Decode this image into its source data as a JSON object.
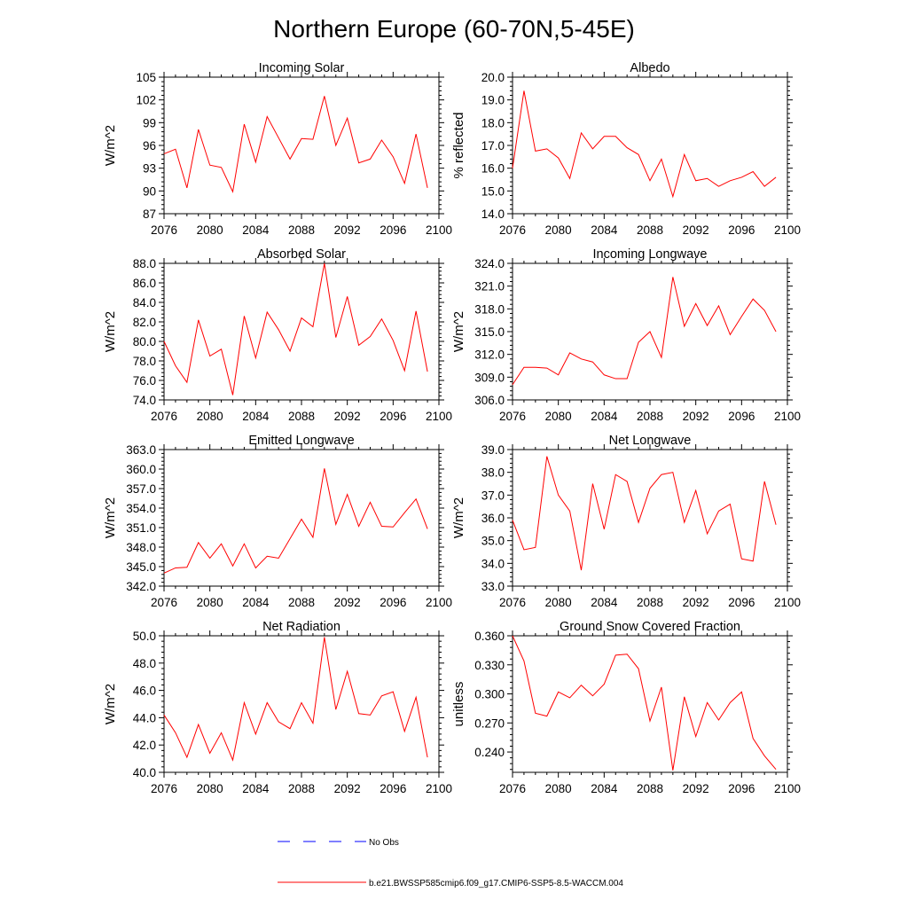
{
  "title": "Northern Europe (60-70N,5-45E)",
  "colors": {
    "series": "#ff0000",
    "obs": "#0000ff",
    "axis": "#000000"
  },
  "legend": {
    "obs_label": "No Obs",
    "model_label": "b.e21.BWSSP585cmip6.f09_g17.CMIP6-SSP5-8.5-WACCM.004"
  },
  "chart_data": [
    {
      "type": "line",
      "title": "Incoming Solar",
      "xlabel": "",
      "ylabel": "W/m^2",
      "xlim": [
        2076,
        2100
      ],
      "ylim": [
        87,
        105
      ],
      "xticks": [
        2076,
        2080,
        2084,
        2088,
        2092,
        2096,
        2100
      ],
      "yticks": [
        87,
        90,
        93,
        96,
        99,
        102,
        105
      ],
      "ydecimals": 0,
      "x": [
        2076,
        2077,
        2078,
        2079,
        2080,
        2081,
        2082,
        2083,
        2084,
        2085,
        2086,
        2087,
        2088,
        2089,
        2090,
        2091,
        2092,
        2093,
        2094,
        2095,
        2096,
        2097,
        2098,
        2099
      ],
      "series": [
        {
          "name": "b.e21.BWSSP585cmip6.f09_g17.CMIP6-SSP5-8.5-WACCM.004",
          "values": [
            94.9,
            95.5,
            90.4,
            98.1,
            93.4,
            93.1,
            89.9,
            98.8,
            93.8,
            99.8,
            97.0,
            94.2,
            96.9,
            96.8,
            102.5,
            96.0,
            99.6,
            93.7,
            94.2,
            96.7,
            94.5,
            91.0,
            97.5,
            90.4
          ]
        }
      ]
    },
    {
      "type": "line",
      "title": "Albedo",
      "xlabel": "",
      "ylabel": "% reflected",
      "xlim": [
        2076,
        2100
      ],
      "ylim": [
        14,
        20
      ],
      "xticks": [
        2076,
        2080,
        2084,
        2088,
        2092,
        2096,
        2100
      ],
      "yticks": [
        14,
        15,
        16,
        17,
        18,
        19,
        20
      ],
      "ydecimals": 1,
      "x": [
        2076,
        2077,
        2078,
        2079,
        2080,
        2081,
        2082,
        2083,
        2084,
        2085,
        2086,
        2087,
        2088,
        2089,
        2090,
        2091,
        2092,
        2093,
        2094,
        2095,
        2096,
        2097,
        2098,
        2099
      ],
      "series": [
        {
          "name": "b.e21.BWSSP585cmip6.f09_g17.CMIP6-SSP5-8.5-WACCM.004",
          "values": [
            16.0,
            19.4,
            16.75,
            16.85,
            16.45,
            15.55,
            17.55,
            16.85,
            17.4,
            17.4,
            16.9,
            16.6,
            15.45,
            16.4,
            14.75,
            16.6,
            15.45,
            15.55,
            15.2,
            15.45,
            15.6,
            15.85,
            15.2,
            15.6
          ]
        }
      ]
    },
    {
      "type": "line",
      "title": "Absorbed Solar",
      "xlabel": "",
      "ylabel": "W/m^2",
      "xlim": [
        2076,
        2100
      ],
      "ylim": [
        74,
        88
      ],
      "xticks": [
        2076,
        2080,
        2084,
        2088,
        2092,
        2096,
        2100
      ],
      "yticks": [
        74,
        76,
        78,
        80,
        82,
        84,
        86,
        88
      ],
      "ydecimals": 1,
      "x": [
        2076,
        2077,
        2078,
        2079,
        2080,
        2081,
        2082,
        2083,
        2084,
        2085,
        2086,
        2087,
        2088,
        2089,
        2090,
        2091,
        2092,
        2093,
        2094,
        2095,
        2096,
        2097,
        2098,
        2099
      ],
      "series": [
        {
          "name": "b.e21.BWSSP585cmip6.f09_g17.CMIP6-SSP5-8.5-WACCM.004",
          "values": [
            80.0,
            77.5,
            75.8,
            82.2,
            78.5,
            79.2,
            74.5,
            82.6,
            78.3,
            83.0,
            81.2,
            79.0,
            82.4,
            81.5,
            88.0,
            80.4,
            84.6,
            79.6,
            80.5,
            82.3,
            80.1,
            77.0,
            83.1,
            76.9
          ]
        }
      ]
    },
    {
      "type": "line",
      "title": "Incoming Longwave",
      "xlabel": "",
      "ylabel": "W/m^2",
      "xlim": [
        2076,
        2100
      ],
      "ylim": [
        306,
        324
      ],
      "xticks": [
        2076,
        2080,
        2084,
        2088,
        2092,
        2096,
        2100
      ],
      "yticks": [
        306,
        309,
        312,
        315,
        318,
        321,
        324
      ],
      "ydecimals": 1,
      "x": [
        2076,
        2077,
        2078,
        2079,
        2080,
        2081,
        2082,
        2083,
        2084,
        2085,
        2086,
        2087,
        2088,
        2089,
        2090,
        2091,
        2092,
        2093,
        2094,
        2095,
        2096,
        2097,
        2098,
        2099
      ],
      "series": [
        {
          "name": "b.e21.BWSSP585cmip6.f09_g17.CMIP6-SSP5-8.5-WACCM.004",
          "values": [
            308.0,
            310.3,
            310.3,
            310.2,
            309.3,
            312.2,
            311.4,
            311.0,
            309.3,
            308.8,
            308.8,
            313.6,
            315.0,
            311.6,
            322.2,
            315.7,
            318.7,
            315.8,
            318.4,
            314.6,
            317.0,
            319.3,
            317.8,
            315.0
          ]
        }
      ]
    },
    {
      "type": "line",
      "title": "Emitted Longwave",
      "xlabel": "",
      "ylabel": "W/m^2",
      "xlim": [
        2076,
        2100
      ],
      "ylim": [
        342,
        363
      ],
      "xticks": [
        2076,
        2080,
        2084,
        2088,
        2092,
        2096,
        2100
      ],
      "yticks": [
        342,
        345,
        348,
        351,
        354,
        357,
        360,
        363
      ],
      "ydecimals": 1,
      "x": [
        2076,
        2077,
        2078,
        2079,
        2080,
        2081,
        2082,
        2083,
        2084,
        2085,
        2086,
        2087,
        2088,
        2089,
        2090,
        2091,
        2092,
        2093,
        2094,
        2095,
        2096,
        2097,
        2098,
        2099
      ],
      "series": [
        {
          "name": "b.e21.BWSSP585cmip6.f09_g17.CMIP6-SSP5-8.5-WACCM.004",
          "values": [
            344.0,
            344.8,
            344.9,
            348.7,
            346.3,
            348.5,
            345.1,
            348.5,
            344.8,
            346.6,
            346.3,
            349.3,
            352.3,
            349.5,
            360.1,
            351.5,
            356.1,
            351.2,
            354.9,
            351.2,
            351.1,
            353.3,
            355.4,
            350.8
          ]
        }
      ]
    },
    {
      "type": "line",
      "title": "Net Longwave",
      "xlabel": "",
      "ylabel": "W/m^2",
      "xlim": [
        2076,
        2100
      ],
      "ylim": [
        33,
        39
      ],
      "xticks": [
        2076,
        2080,
        2084,
        2088,
        2092,
        2096,
        2100
      ],
      "yticks": [
        33,
        34,
        35,
        36,
        37,
        38,
        39
      ],
      "ydecimals": 1,
      "x": [
        2076,
        2077,
        2078,
        2079,
        2080,
        2081,
        2082,
        2083,
        2084,
        2085,
        2086,
        2087,
        2088,
        2089,
        2090,
        2091,
        2092,
        2093,
        2094,
        2095,
        2096,
        2097,
        2098,
        2099
      ],
      "series": [
        {
          "name": "b.e21.BWSSP585cmip6.f09_g17.CMIP6-SSP5-8.5-WACCM.004",
          "values": [
            35.9,
            34.6,
            34.7,
            38.7,
            37.0,
            36.3,
            33.7,
            37.5,
            35.5,
            37.9,
            37.6,
            35.8,
            37.3,
            37.9,
            38.0,
            35.8,
            37.2,
            35.3,
            36.3,
            36.6,
            34.2,
            34.1,
            37.6,
            35.7
          ]
        }
      ]
    },
    {
      "type": "line",
      "title": "Net Radiation",
      "xlabel": "",
      "ylabel": "W/m^2",
      "xlim": [
        2076,
        2100
      ],
      "ylim": [
        40,
        50
      ],
      "xticks": [
        2076,
        2080,
        2084,
        2088,
        2092,
        2096,
        2100
      ],
      "yticks": [
        40,
        42,
        44,
        46,
        48,
        50
      ],
      "ydecimals": 1,
      "x": [
        2076,
        2077,
        2078,
        2079,
        2080,
        2081,
        2082,
        2083,
        2084,
        2085,
        2086,
        2087,
        2088,
        2089,
        2090,
        2091,
        2092,
        2093,
        2094,
        2095,
        2096,
        2097,
        2098,
        2099
      ],
      "series": [
        {
          "name": "b.e21.BWSSP585cmip6.f09_g17.CMIP6-SSP5-8.5-WACCM.004",
          "values": [
            44.2,
            42.9,
            41.1,
            43.5,
            41.4,
            42.9,
            40.9,
            45.1,
            42.8,
            45.1,
            43.7,
            43.2,
            45.1,
            43.6,
            49.9,
            44.6,
            47.4,
            44.3,
            44.2,
            45.6,
            45.9,
            43.0,
            45.5,
            41.1
          ]
        }
      ]
    },
    {
      "type": "line",
      "title": "Ground Snow Covered Fraction",
      "xlabel": "",
      "ylabel": "unitless",
      "xlim": [
        2076,
        2100
      ],
      "ylim": [
        0.219,
        0.36
      ],
      "xticks": [
        2076,
        2080,
        2084,
        2088,
        2092,
        2096,
        2100
      ],
      "yticks": [
        0.24,
        0.27,
        0.3,
        0.33,
        0.36
      ],
      "ydecimals": 3,
      "x": [
        2076,
        2077,
        2078,
        2079,
        2080,
        2081,
        2082,
        2083,
        2084,
        2085,
        2086,
        2087,
        2088,
        2089,
        2090,
        2091,
        2092,
        2093,
        2094,
        2095,
        2096,
        2097,
        2098,
        2099
      ],
      "series": [
        {
          "name": "b.e21.BWSSP585cmip6.f09_g17.CMIP6-SSP5-8.5-WACCM.004",
          "values": [
            0.36,
            0.334,
            0.28,
            0.277,
            0.302,
            0.296,
            0.309,
            0.298,
            0.31,
            0.34,
            0.341,
            0.326,
            0.272,
            0.307,
            0.221,
            0.297,
            0.256,
            0.291,
            0.273,
            0.291,
            0.302,
            0.254,
            0.236,
            0.222
          ]
        }
      ]
    }
  ]
}
